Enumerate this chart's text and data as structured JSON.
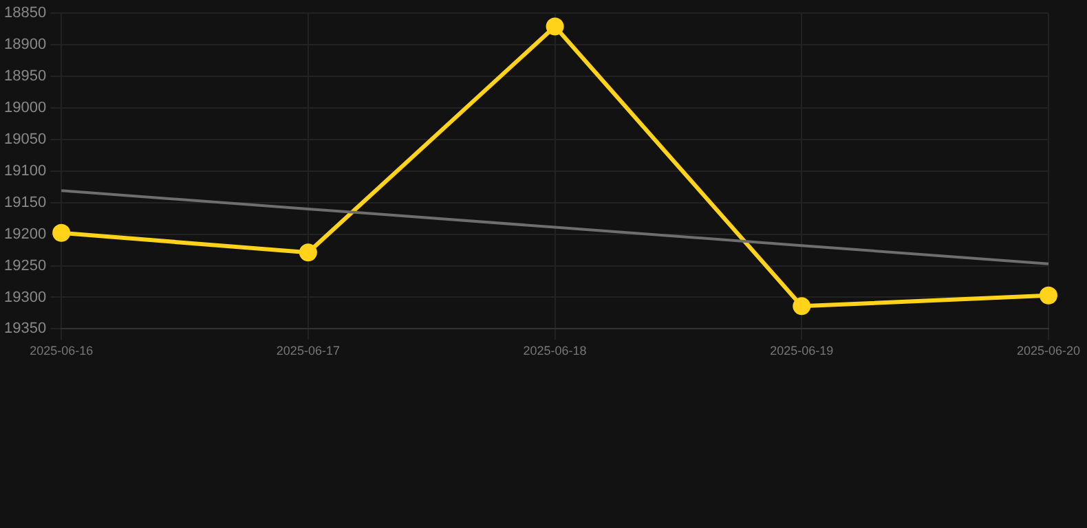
{
  "chart_data": {
    "type": "line",
    "categories": [
      "2025-06-16",
      "2025-06-17",
      "2025-06-18",
      "2025-06-19",
      "2025-06-20"
    ],
    "series": [
      {
        "color": "#ffd31a",
        "values": [
          19198,
          19229,
          18871,
          19314,
          19297
        ],
        "marker": "circle"
      },
      {
        "type": "line",
        "color": "#6e6e6e",
        "values": [
          19131,
          19160,
          19189,
          19218,
          19247
        ],
        "marker": "none"
      }
    ],
    "ylim": [
      19350,
      18850
    ],
    "yticks": [
      18850,
      18900,
      18950,
      19000,
      19050,
      19100,
      19150,
      19200,
      19250,
      19300,
      19350
    ],
    "grid": true
  }
}
